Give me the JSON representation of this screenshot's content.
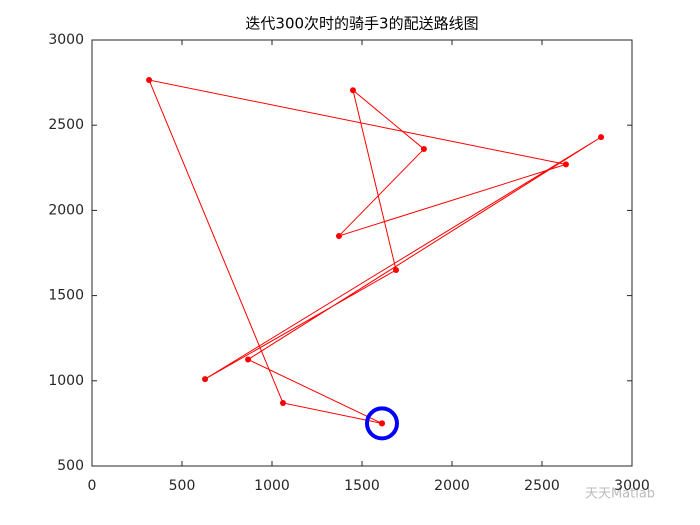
{
  "chart_data": {
    "type": "line",
    "title": "迭代300次时的骑手3的配送路线图",
    "x": [
      1611,
      1061,
      317,
      2633,
      1372,
      1844,
      1450,
      1689,
      628,
      2828,
      867,
      1611
    ],
    "series": [
      {
        "color": "#ff0000",
        "values": [
          750,
          870,
          2765,
          2270,
          1850,
          2360,
          2705,
          1650,
          1010,
          2430,
          1125,
          750
        ]
      }
    ],
    "depot": {
      "x": 1611,
      "y": 750,
      "color": "#0000ff"
    },
    "xlim": [
      0,
      3000
    ],
    "xticks": [
      0,
      500,
      1000,
      1500,
      2000,
      2500,
      3000
    ],
    "ylim": [
      500,
      3000
    ],
    "yticks": [
      500,
      1000,
      1500,
      2000,
      2500,
      3000
    ],
    "watermark": "天天Matlab"
  }
}
